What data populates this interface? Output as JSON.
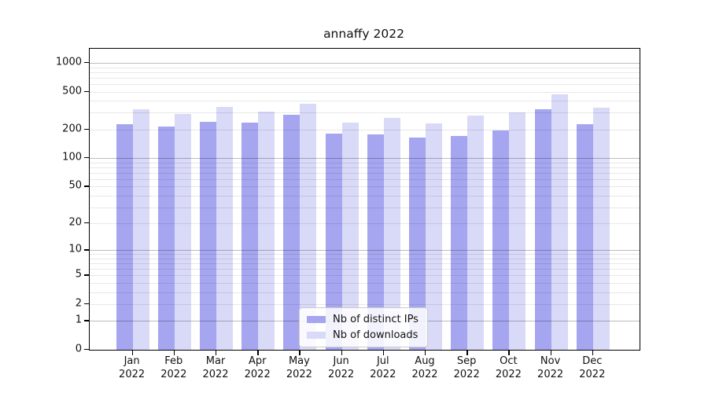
{
  "chart_data": {
    "type": "bar",
    "title": "annaffy 2022",
    "categories": [
      "Jan",
      "Feb",
      "Mar",
      "Apr",
      "May",
      "Jun",
      "Jul",
      "Aug",
      "Sep",
      "Oct",
      "Nov",
      "Dec"
    ],
    "category_year": "2022",
    "series": [
      {
        "name": "Nb of distinct IPs",
        "color": "#a5a5f0",
        "values": [
          228,
          215,
          243,
          236,
          287,
          182,
          178,
          165,
          172,
          197,
          326,
          229
        ]
      },
      {
        "name": "Nb of downloads",
        "color": "#d9d9f8",
        "values": [
          325,
          292,
          346,
          311,
          374,
          238,
          264,
          232,
          282,
          305,
          465,
          336
        ]
      }
    ],
    "xlabel": "",
    "ylabel": "",
    "y_scale": "log1p",
    "ylim": [
      0,
      1404
    ],
    "y_ticks": [
      0,
      1,
      2,
      5,
      10,
      20,
      50,
      100,
      200,
      500,
      1000
    ],
    "y_major_gridlines": [
      1,
      10,
      100,
      1000
    ],
    "y_minor_gridlines": [
      2,
      3,
      4,
      5,
      6,
      7,
      8,
      9,
      20,
      30,
      40,
      50,
      60,
      70,
      80,
      90,
      200,
      300,
      400,
      500,
      600,
      700,
      800,
      900
    ],
    "grid": "horizontal",
    "legend": {
      "position": "lower center",
      "entries": [
        "Nb of distinct IPs",
        "Nb of downloads"
      ]
    },
    "colors": {
      "background": "#ffffff",
      "axis": "#000000",
      "grid_major": "rgba(0,0,0,0.26)",
      "grid_minor": "rgba(0,0,0,0.09)"
    }
  }
}
